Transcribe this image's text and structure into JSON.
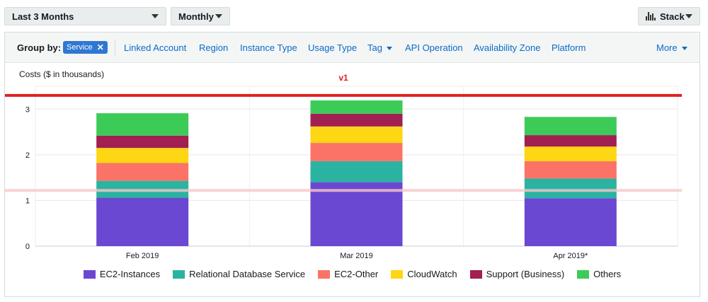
{
  "controls": {
    "date_range": "Last 3 Months",
    "granularity": "Monthly",
    "chart_style": "Stack"
  },
  "group_by": {
    "label": "Group by:",
    "selected": "Service",
    "options": [
      "Linked Account",
      "Region",
      "Instance Type",
      "Usage Type",
      "Tag",
      "API Operation",
      "Availability Zone",
      "Platform"
    ],
    "more": "More"
  },
  "colors": {
    "accent": "#2f78d2",
    "link": "#0a6ac7",
    "threshold_high": "#e02020",
    "threshold_low": "#f8c8c8"
  },
  "chart_data": {
    "type": "bar",
    "stacked": true,
    "title": "Costs ($ in thousands)",
    "categories": [
      "Feb 2019",
      "Mar 2019",
      "Apr 2019*"
    ],
    "ylim": [
      0,
      3.5
    ],
    "yticks": [
      0,
      1,
      2,
      3
    ],
    "grid": true,
    "legend_position": "bottom",
    "series": [
      {
        "name": "EC2-Instances",
        "color": "#6b48d1",
        "values": [
          1.06,
          1.4,
          1.05
        ]
      },
      {
        "name": "Relational Database Service",
        "color": "#2bb3a2",
        "values": [
          0.37,
          0.46,
          0.43
        ]
      },
      {
        "name": "EC2-Other",
        "color": "#fb7366",
        "values": [
          0.39,
          0.4,
          0.38
        ]
      },
      {
        "name": "CloudWatch",
        "color": "#fdd614",
        "values": [
          0.33,
          0.36,
          0.32
        ]
      },
      {
        "name": "Support (Business)",
        "color": "#a11f51",
        "values": [
          0.27,
          0.28,
          0.25
        ]
      },
      {
        "name": "Others",
        "color": "#3dcb58",
        "values": [
          0.49,
          0.29,
          0.4
        ]
      }
    ],
    "thresholds": [
      {
        "label": "v1",
        "value": 3.3,
        "color": "#e02020"
      },
      {
        "label": "",
        "value": 1.22,
        "color": "#f8c8c8"
      }
    ]
  }
}
